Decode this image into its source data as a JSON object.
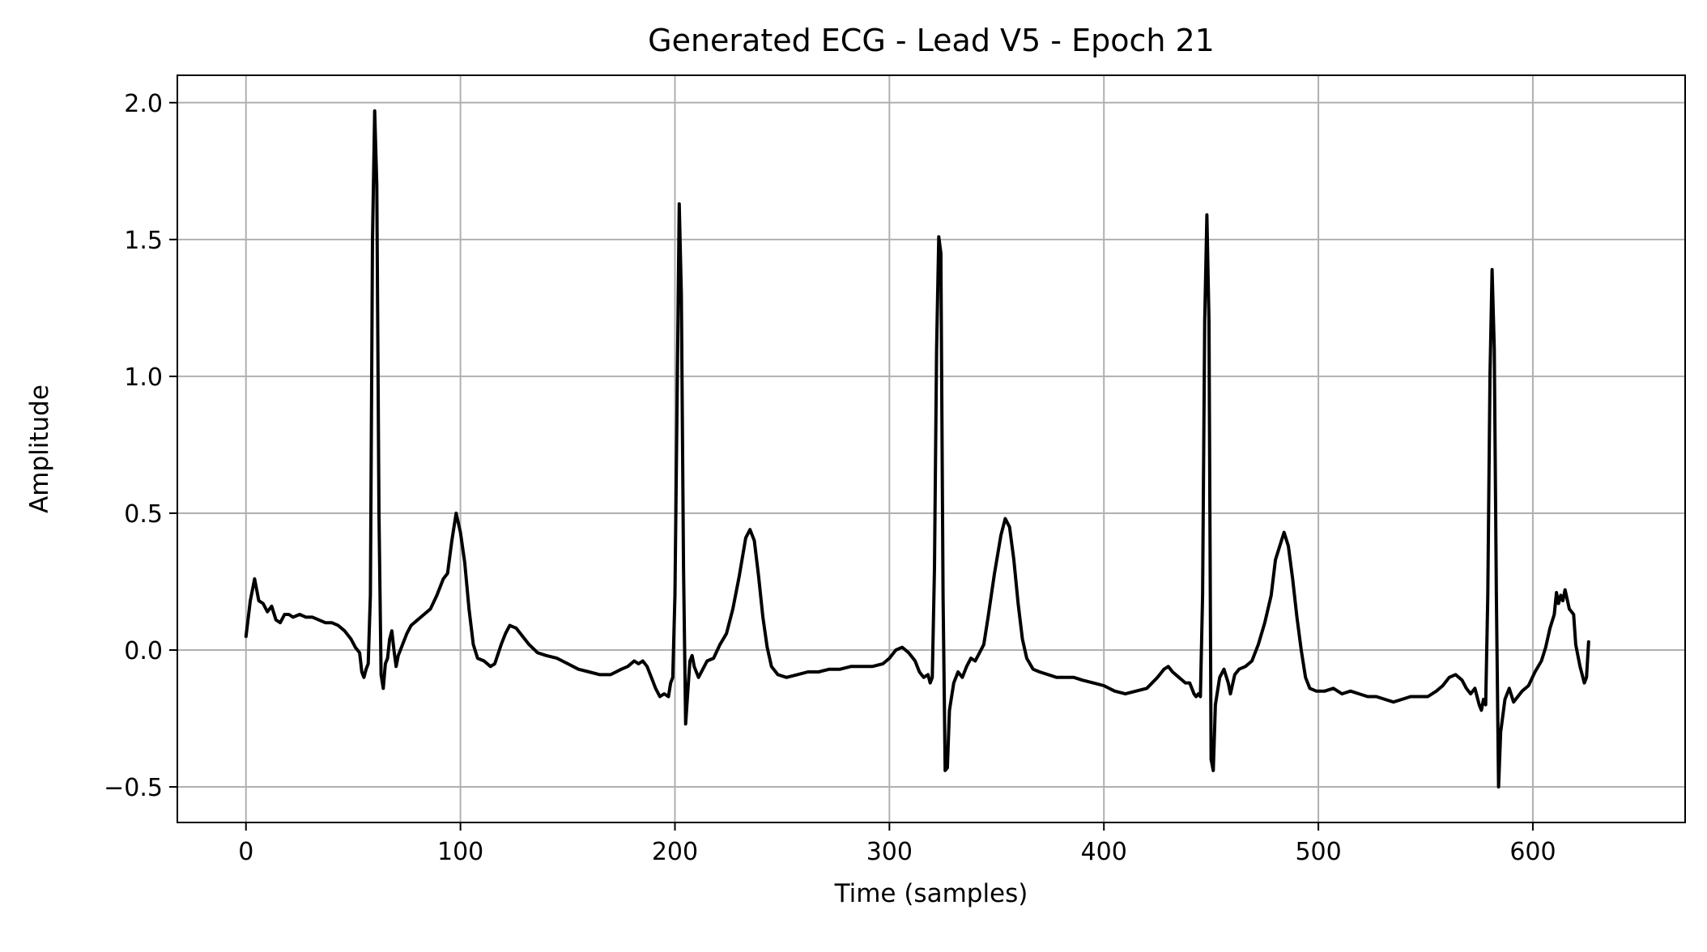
{
  "chart_data": {
    "type": "line",
    "title": "Generated ECG - Lead V5 - Epoch 21",
    "xlabel": "Time (samples)",
    "ylabel": "Amplitude",
    "xlim": [
      -32,
      671
    ],
    "ylim": [
      -0.63,
      2.1
    ],
    "x_ticks": [
      0,
      100,
      200,
      300,
      400,
      500,
      600
    ],
    "x_tick_labels": [
      "0",
      "100",
      "200",
      "300",
      "400",
      "500",
      "600"
    ],
    "y_ticks": [
      -0.5,
      0.0,
      0.5,
      1.0,
      1.5,
      2.0
    ],
    "y_tick_labels": [
      "−0.5",
      "0.0",
      "0.5",
      "1.0",
      "1.5",
      "2.0"
    ],
    "grid": true,
    "line_color": "#000000",
    "grid_color": "#b0b0b0",
    "series": [
      {
        "points": [
          [
            0,
            0.05
          ],
          [
            2,
            0.18
          ],
          [
            4,
            0.26
          ],
          [
            6,
            0.18
          ],
          [
            8,
            0.17
          ],
          [
            10,
            0.14
          ],
          [
            12,
            0.16
          ],
          [
            14,
            0.11
          ],
          [
            16,
            0.1
          ],
          [
            18,
            0.13
          ],
          [
            20,
            0.13
          ],
          [
            22,
            0.12
          ],
          [
            25,
            0.13
          ],
          [
            28,
            0.12
          ],
          [
            31,
            0.12
          ],
          [
            34,
            0.11
          ],
          [
            37,
            0.1
          ],
          [
            40,
            0.1
          ],
          [
            43,
            0.09
          ],
          [
            46,
            0.07
          ],
          [
            49,
            0.04
          ],
          [
            51,
            0.01
          ],
          [
            53,
            -0.01
          ],
          [
            54,
            -0.08
          ],
          [
            55,
            -0.1
          ],
          [
            56,
            -0.07
          ],
          [
            57,
            -0.05
          ],
          [
            58,
            0.2
          ],
          [
            59,
            1.5
          ],
          [
            60,
            1.97
          ],
          [
            61,
            1.7
          ],
          [
            62,
            0.5
          ],
          [
            63,
            -0.09
          ],
          [
            64,
            -0.14
          ],
          [
            65,
            -0.05
          ],
          [
            66,
            -0.03
          ],
          [
            67,
            0.04
          ],
          [
            68,
            0.07
          ],
          [
            69,
            0.0
          ],
          [
            70,
            -0.06
          ],
          [
            71,
            -0.02
          ],
          [
            73,
            0.02
          ],
          [
            75,
            0.06
          ],
          [
            77,
            0.09
          ],
          [
            80,
            0.11
          ],
          [
            83,
            0.13
          ],
          [
            86,
            0.15
          ],
          [
            89,
            0.2
          ],
          [
            92,
            0.26
          ],
          [
            94,
            0.28
          ],
          [
            96,
            0.4
          ],
          [
            98,
            0.5
          ],
          [
            100,
            0.43
          ],
          [
            102,
            0.32
          ],
          [
            104,
            0.15
          ],
          [
            106,
            0.02
          ],
          [
            108,
            -0.03
          ],
          [
            111,
            -0.04
          ],
          [
            114,
            -0.06
          ],
          [
            116,
            -0.05
          ],
          [
            119,
            0.02
          ],
          [
            121,
            0.06
          ],
          [
            123,
            0.09
          ],
          [
            126,
            0.08
          ],
          [
            129,
            0.05
          ],
          [
            132,
            0.02
          ],
          [
            136,
            -0.01
          ],
          [
            140,
            -0.02
          ],
          [
            145,
            -0.03
          ],
          [
            150,
            -0.05
          ],
          [
            155,
            -0.07
          ],
          [
            160,
            -0.08
          ],
          [
            165,
            -0.09
          ],
          [
            170,
            -0.09
          ],
          [
            175,
            -0.07
          ],
          [
            178,
            -0.06
          ],
          [
            181,
            -0.04
          ],
          [
            183,
            -0.05
          ],
          [
            185,
            -0.04
          ],
          [
            187,
            -0.06
          ],
          [
            189,
            -0.1
          ],
          [
            191,
            -0.14
          ],
          [
            193,
            -0.17
          ],
          [
            195,
            -0.16
          ],
          [
            197,
            -0.17
          ],
          [
            198,
            -0.12
          ],
          [
            199,
            -0.1
          ],
          [
            200,
            0.2
          ],
          [
            201,
            0.9
          ],
          [
            202,
            1.63
          ],
          [
            203,
            1.3
          ],
          [
            204,
            0.3
          ],
          [
            205,
            -0.27
          ],
          [
            206,
            -0.15
          ],
          [
            207,
            -0.04
          ],
          [
            208,
            -0.02
          ],
          [
            209,
            -0.06
          ],
          [
            211,
            -0.1
          ],
          [
            213,
            -0.07
          ],
          [
            215,
            -0.04
          ],
          [
            218,
            -0.03
          ],
          [
            221,
            0.02
          ],
          [
            224,
            0.06
          ],
          [
            227,
            0.15
          ],
          [
            230,
            0.27
          ],
          [
            233,
            0.41
          ],
          [
            235,
            0.44
          ],
          [
            237,
            0.4
          ],
          [
            239,
            0.27
          ],
          [
            241,
            0.12
          ],
          [
            243,
            0.01
          ],
          [
            245,
            -0.06
          ],
          [
            248,
            -0.09
          ],
          [
            252,
            -0.1
          ],
          [
            257,
            -0.09
          ],
          [
            262,
            -0.08
          ],
          [
            267,
            -0.08
          ],
          [
            272,
            -0.07
          ],
          [
            277,
            -0.07
          ],
          [
            282,
            -0.06
          ],
          [
            287,
            -0.06
          ],
          [
            292,
            -0.06
          ],
          [
            297,
            -0.05
          ],
          [
            300,
            -0.03
          ],
          [
            303,
            0.0
          ],
          [
            306,
            0.01
          ],
          [
            309,
            -0.01
          ],
          [
            312,
            -0.04
          ],
          [
            314,
            -0.08
          ],
          [
            316,
            -0.1
          ],
          [
            318,
            -0.09
          ],
          [
            319,
            -0.12
          ],
          [
            320,
            -0.1
          ],
          [
            321,
            0.3
          ],
          [
            322,
            1.1
          ],
          [
            323,
            1.51
          ],
          [
            324,
            1.45
          ],
          [
            325,
            0.2
          ],
          [
            326,
            -0.44
          ],
          [
            327,
            -0.43
          ],
          [
            328,
            -0.22
          ],
          [
            330,
            -0.12
          ],
          [
            332,
            -0.08
          ],
          [
            334,
            -0.1
          ],
          [
            336,
            -0.06
          ],
          [
            338,
            -0.03
          ],
          [
            340,
            -0.04
          ],
          [
            342,
            -0.01
          ],
          [
            344,
            0.02
          ],
          [
            346,
            0.12
          ],
          [
            349,
            0.28
          ],
          [
            352,
            0.42
          ],
          [
            354,
            0.48
          ],
          [
            356,
            0.45
          ],
          [
            358,
            0.33
          ],
          [
            360,
            0.17
          ],
          [
            362,
            0.04
          ],
          [
            364,
            -0.03
          ],
          [
            367,
            -0.07
          ],
          [
            370,
            -0.08
          ],
          [
            374,
            -0.09
          ],
          [
            378,
            -0.1
          ],
          [
            382,
            -0.1
          ],
          [
            386,
            -0.1
          ],
          [
            390,
            -0.11
          ],
          [
            395,
            -0.12
          ],
          [
            400,
            -0.13
          ],
          [
            405,
            -0.15
          ],
          [
            410,
            -0.16
          ],
          [
            415,
            -0.15
          ],
          [
            420,
            -0.14
          ],
          [
            425,
            -0.1
          ],
          [
            428,
            -0.07
          ],
          [
            430,
            -0.06
          ],
          [
            432,
            -0.08
          ],
          [
            435,
            -0.1
          ],
          [
            438,
            -0.12
          ],
          [
            440,
            -0.12
          ],
          [
            442,
            -0.16
          ],
          [
            443,
            -0.17
          ],
          [
            444,
            -0.16
          ],
          [
            445,
            -0.17
          ],
          [
            446,
            0.2
          ],
          [
            447,
            1.2
          ],
          [
            448,
            1.59
          ],
          [
            449,
            1.2
          ],
          [
            450,
            -0.4
          ],
          [
            451,
            -0.44
          ],
          [
            452,
            -0.2
          ],
          [
            454,
            -0.1
          ],
          [
            456,
            -0.07
          ],
          [
            458,
            -0.12
          ],
          [
            459,
            -0.16
          ],
          [
            461,
            -0.09
          ],
          [
            463,
            -0.07
          ],
          [
            466,
            -0.06
          ],
          [
            469,
            -0.04
          ],
          [
            472,
            0.02
          ],
          [
            475,
            0.1
          ],
          [
            478,
            0.2
          ],
          [
            480,
            0.33
          ],
          [
            482,
            0.38
          ],
          [
            484,
            0.43
          ],
          [
            486,
            0.38
          ],
          [
            488,
            0.26
          ],
          [
            490,
            0.12
          ],
          [
            492,
            0.0
          ],
          [
            494,
            -0.1
          ],
          [
            496,
            -0.14
          ],
          [
            499,
            -0.15
          ],
          [
            503,
            -0.15
          ],
          [
            507,
            -0.14
          ],
          [
            511,
            -0.16
          ],
          [
            515,
            -0.15
          ],
          [
            519,
            -0.16
          ],
          [
            523,
            -0.17
          ],
          [
            527,
            -0.17
          ],
          [
            531,
            -0.18
          ],
          [
            535,
            -0.19
          ],
          [
            539,
            -0.18
          ],
          [
            543,
            -0.17
          ],
          [
            547,
            -0.17
          ],
          [
            551,
            -0.17
          ],
          [
            555,
            -0.15
          ],
          [
            558,
            -0.13
          ],
          [
            561,
            -0.1
          ],
          [
            564,
            -0.09
          ],
          [
            567,
            -0.11
          ],
          [
            569,
            -0.14
          ],
          [
            571,
            -0.16
          ],
          [
            573,
            -0.14
          ],
          [
            575,
            -0.2
          ],
          [
            576,
            -0.22
          ],
          [
            577,
            -0.18
          ],
          [
            578,
            -0.2
          ],
          [
            579,
            0.2
          ],
          [
            580,
            1.0
          ],
          [
            581,
            1.39
          ],
          [
            582,
            1.1
          ],
          [
            583,
            0.2
          ],
          [
            584,
            -0.5
          ],
          [
            585,
            -0.3
          ],
          [
            587,
            -0.18
          ],
          [
            589,
            -0.14
          ],
          [
            591,
            -0.19
          ],
          [
            593,
            -0.17
          ],
          [
            595,
            -0.15
          ],
          [
            598,
            -0.13
          ],
          [
            601,
            -0.08
          ],
          [
            604,
            -0.04
          ],
          [
            606,
            0.01
          ],
          [
            608,
            0.08
          ],
          [
            610,
            0.13
          ],
          [
            611,
            0.21
          ],
          [
            612,
            0.17
          ],
          [
            613,
            0.2
          ],
          [
            614,
            0.18
          ],
          [
            615,
            0.22
          ],
          [
            617,
            0.15
          ],
          [
            619,
            0.13
          ],
          [
            620,
            0.02
          ],
          [
            622,
            -0.06
          ],
          [
            624,
            -0.12
          ],
          [
            625,
            -0.1
          ],
          [
            626,
            0.03
          ]
        ]
      }
    ]
  }
}
